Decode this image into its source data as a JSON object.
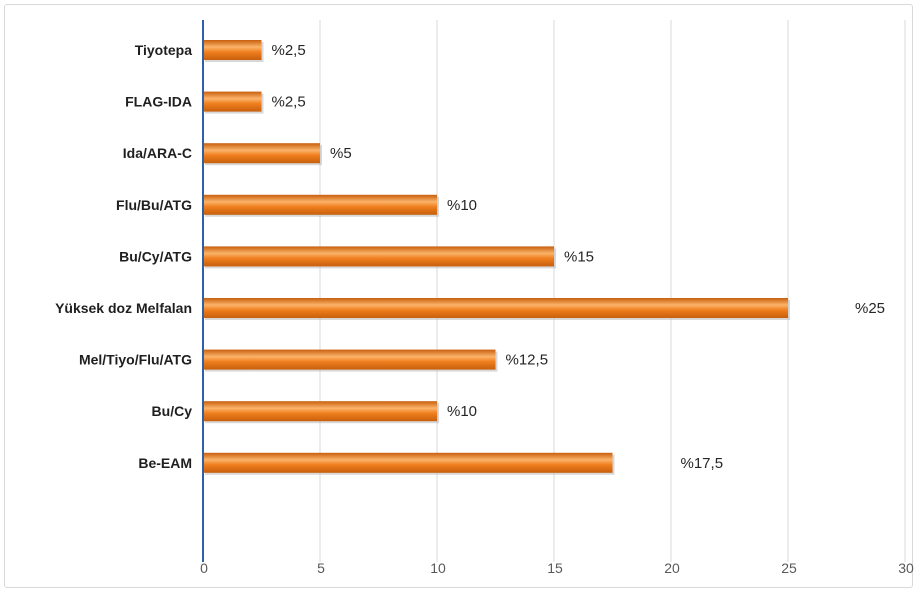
{
  "chart_data": {
    "type": "bar",
    "orientation": "horizontal",
    "title": "",
    "xlabel": "",
    "ylabel": "",
    "categories": [
      "Tiyotepa",
      "FLAG-IDA",
      "Ida/ARA-C",
      "Flu/Bu/ATG",
      "Bu/Cy/ATG",
      "Yüksek doz Melfalan",
      "Mel/Tiyo/Flu/ATG",
      "Bu/Cy",
      "Be-EAM"
    ],
    "values": [
      2.5,
      2.5,
      5,
      10,
      15,
      25,
      12.5,
      10,
      17.5
    ],
    "data_labels": [
      "%2,5",
      "%2,5",
      "%5",
      "%10",
      "%15",
      "%25",
      "%12,5",
      "%10",
      "%17,5"
    ],
    "xlim": [
      0,
      30
    ],
    "xticks": [
      "0",
      "5",
      "10",
      "15",
      "20",
      "25",
      "30"
    ],
    "grid": true,
    "legend": "none",
    "bar_color": "#f07f1e",
    "bar_highlight_color": "#fbb36a",
    "bar_shadow_color": "#c85f0c",
    "axis_color": "#2e5fa8",
    "grid_color": "#d9d9d9"
  }
}
